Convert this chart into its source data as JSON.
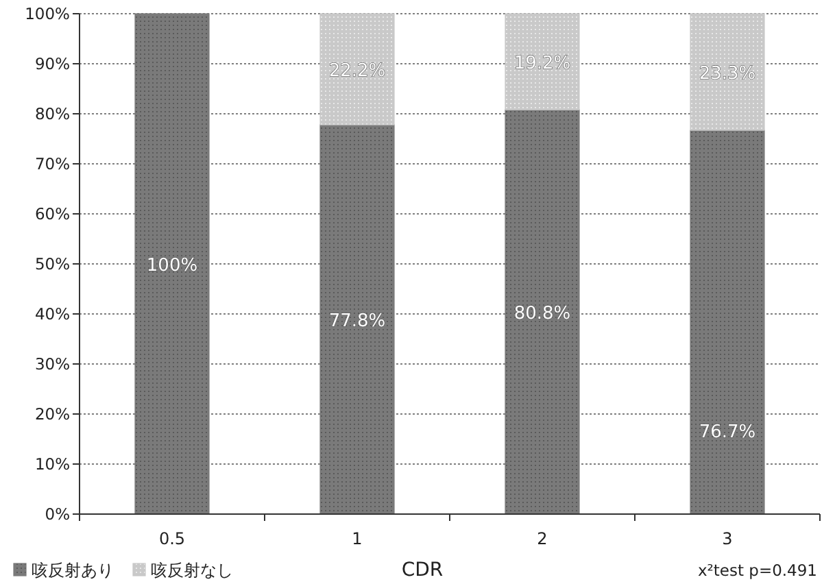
{
  "chart_data": {
    "type": "bar",
    "stacked": true,
    "categories": [
      "0.5",
      "1",
      "2",
      "3"
    ],
    "series": [
      {
        "name": "咳反射あり",
        "color": "#7a7a7a",
        "values": [
          100,
          77.8,
          80.8,
          76.7
        ],
        "value_labels": [
          "100%",
          "77.8%",
          "80.8%",
          "76.7%"
        ]
      },
      {
        "name": "咳反射なし",
        "color": "#c9c9c9",
        "values": [
          0,
          22.2,
          19.2,
          23.3
        ],
        "value_labels": [
          null,
          "22.2%",
          "19.2%",
          "23.3%"
        ]
      }
    ],
    "xlabel": "CDR",
    "ylim": [
      0,
      100
    ],
    "yticks": [
      {
        "value": 0,
        "label": "0%"
      },
      {
        "value": 10,
        "label": "10%"
      },
      {
        "value": 20,
        "label": "20%"
      },
      {
        "value": 30,
        "label": "30%"
      },
      {
        "value": 40,
        "label": "40%"
      },
      {
        "value": 50,
        "label": "50%"
      },
      {
        "value": 60,
        "label": "60%"
      },
      {
        "value": 70,
        "label": "70%"
      },
      {
        "value": 80,
        "label": "80%"
      },
      {
        "value": 90,
        "label": "90%"
      },
      {
        "value": 100,
        "label": "100%"
      }
    ],
    "grid": "y",
    "legend": "bottom left",
    "annotations": [
      "x²test p=0.491"
    ]
  }
}
